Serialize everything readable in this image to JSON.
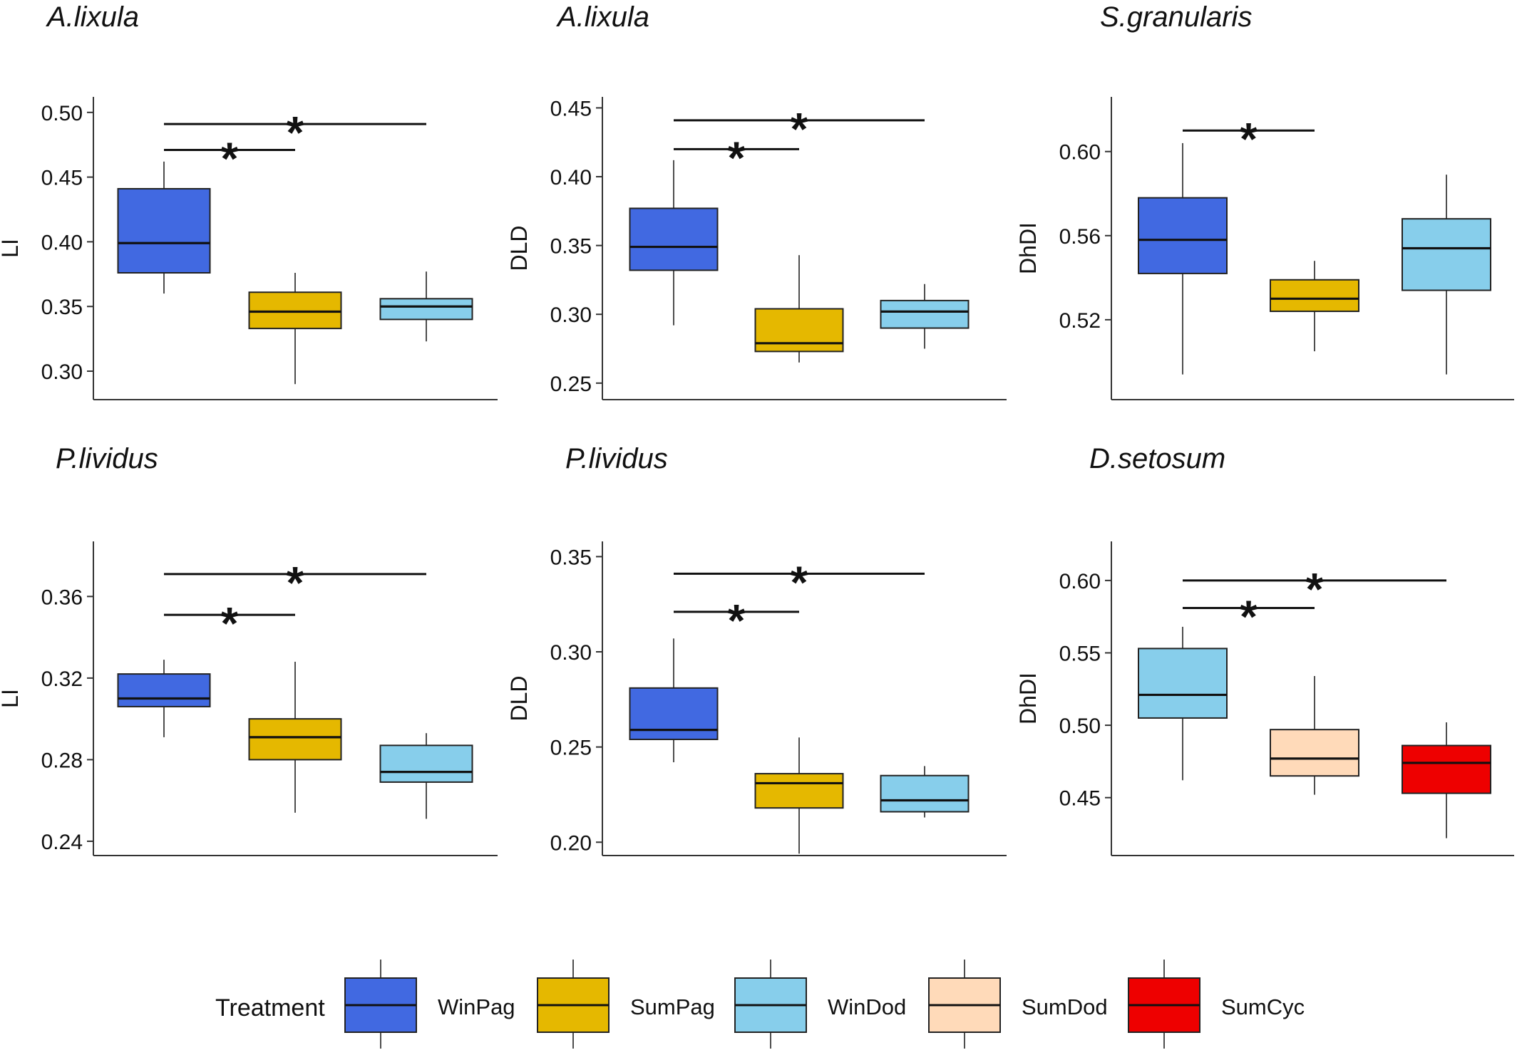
{
  "treatments": [
    {
      "name": "WinPag",
      "color": "#4169E1"
    },
    {
      "name": "SumPag",
      "color": "#E5B800"
    },
    {
      "name": "WinDod",
      "color": "#87CEEB"
    },
    {
      "name": "SumDod",
      "color": "#FFDAB9"
    },
    {
      "name": "SumCyc",
      "color": "#EE0000"
    }
  ],
  "legend": {
    "title": "Treatment"
  },
  "significance_marker": "*",
  "chart_data": [
    {
      "type": "boxplot",
      "title": "A.lixula",
      "ylabel": "LI",
      "ylim": [
        0.278,
        0.512
      ],
      "yticks": [
        0.3,
        0.35,
        0.4,
        0.45,
        0.5
      ],
      "tick_labels": [
        "0.30",
        "0.35",
        "0.40",
        "0.45",
        "0.50"
      ],
      "boxes": [
        {
          "treatment": "WinPag",
          "min": 0.36,
          "q1": 0.376,
          "median": 0.399,
          "q3": 0.441,
          "max": 0.462
        },
        {
          "treatment": "SumPag",
          "min": 0.29,
          "q1": 0.333,
          "median": 0.346,
          "q3": 0.361,
          "max": 0.376
        },
        {
          "treatment": "WinDod",
          "min": 0.323,
          "q1": 0.34,
          "median": 0.35,
          "q3": 0.356,
          "max": 0.377
        }
      ],
      "significance": [
        {
          "from": 0,
          "to": 1,
          "y": 0.471,
          "label": "*"
        },
        {
          "from": 0,
          "to": 2,
          "y": 0.491,
          "label": "*"
        }
      ]
    },
    {
      "type": "boxplot",
      "title": "A.lixula",
      "ylabel": "DLD",
      "ylim": [
        0.238,
        0.458
      ],
      "yticks": [
        0.25,
        0.3,
        0.35,
        0.4,
        0.45
      ],
      "tick_labels": [
        "0.25",
        "0.30",
        "0.35",
        "0.40",
        "0.45"
      ],
      "boxes": [
        {
          "treatment": "WinPag",
          "min": 0.292,
          "q1": 0.332,
          "median": 0.349,
          "q3": 0.377,
          "max": 0.412
        },
        {
          "treatment": "SumPag",
          "min": 0.265,
          "q1": 0.273,
          "median": 0.279,
          "q3": 0.304,
          "max": 0.343
        },
        {
          "treatment": "WinDod",
          "min": 0.275,
          "q1": 0.29,
          "median": 0.302,
          "q3": 0.31,
          "max": 0.322
        }
      ],
      "significance": [
        {
          "from": 0,
          "to": 1,
          "y": 0.42,
          "label": "*"
        },
        {
          "from": 0,
          "to": 2,
          "y": 0.441,
          "label": "*"
        }
      ]
    },
    {
      "type": "boxplot",
      "title": "S.granularis",
      "ylabel": "DhDI",
      "ylim": [
        0.482,
        0.626
      ],
      "yticks": [
        0.52,
        0.56,
        0.6
      ],
      "tick_labels": [
        "0.52",
        "0.56",
        "0.60"
      ],
      "boxes": [
        {
          "treatment": "WinPag",
          "min": 0.494,
          "q1": 0.542,
          "median": 0.558,
          "q3": 0.578,
          "max": 0.604
        },
        {
          "treatment": "SumPag",
          "min": 0.505,
          "q1": 0.524,
          "median": 0.53,
          "q3": 0.539,
          "max": 0.548
        },
        {
          "treatment": "WinDod",
          "min": 0.494,
          "q1": 0.534,
          "median": 0.554,
          "q3": 0.568,
          "max": 0.589
        }
      ],
      "significance": [
        {
          "from": 0,
          "to": 1,
          "y": 0.61,
          "label": "*"
        }
      ]
    },
    {
      "type": "boxplot",
      "title": "P.lividus",
      "ylabel": "LI",
      "ylim": [
        0.233,
        0.387
      ],
      "yticks": [
        0.24,
        0.28,
        0.32,
        0.36
      ],
      "tick_labels": [
        "0.24",
        "0.28",
        "0.32",
        "0.36"
      ],
      "boxes": [
        {
          "treatment": "WinPag",
          "min": 0.291,
          "q1": 0.306,
          "median": 0.31,
          "q3": 0.322,
          "max": 0.329
        },
        {
          "treatment": "SumPag",
          "min": 0.254,
          "q1": 0.28,
          "median": 0.291,
          "q3": 0.3,
          "max": 0.328
        },
        {
          "treatment": "WinDod",
          "min": 0.251,
          "q1": 0.269,
          "median": 0.274,
          "q3": 0.287,
          "max": 0.293
        }
      ],
      "significance": [
        {
          "from": 0,
          "to": 1,
          "y": 0.351,
          "label": "*"
        },
        {
          "from": 0,
          "to": 2,
          "y": 0.371,
          "label": "*"
        }
      ]
    },
    {
      "type": "boxplot",
      "title": "P.lividus",
      "ylabel": "DLD",
      "ylim": [
        0.193,
        0.358
      ],
      "yticks": [
        0.2,
        0.25,
        0.3,
        0.35
      ],
      "tick_labels": [
        "0.20",
        "0.25",
        "0.30",
        "0.35"
      ],
      "boxes": [
        {
          "treatment": "WinPag",
          "min": 0.242,
          "q1": 0.254,
          "median": 0.259,
          "q3": 0.281,
          "max": 0.307
        },
        {
          "treatment": "SumPag",
          "min": 0.194,
          "q1": 0.218,
          "median": 0.231,
          "q3": 0.236,
          "max": 0.255
        },
        {
          "treatment": "WinDod",
          "min": 0.213,
          "q1": 0.216,
          "median": 0.222,
          "q3": 0.235,
          "max": 0.24
        }
      ],
      "significance": [
        {
          "from": 0,
          "to": 1,
          "y": 0.321,
          "label": "*"
        },
        {
          "from": 0,
          "to": 2,
          "y": 0.341,
          "label": "*"
        }
      ]
    },
    {
      "type": "boxplot",
      "title": "D.setosum",
      "ylabel": "DhDI",
      "ylim": [
        0.41,
        0.627
      ],
      "yticks": [
        0.45,
        0.5,
        0.55,
        0.6
      ],
      "tick_labels": [
        "0.45",
        "0.50",
        "0.55",
        "0.60"
      ],
      "boxes": [
        {
          "treatment": "WinDod",
          "min": 0.462,
          "q1": 0.505,
          "median": 0.521,
          "q3": 0.553,
          "max": 0.568
        },
        {
          "treatment": "SumDod",
          "min": 0.452,
          "q1": 0.465,
          "median": 0.477,
          "q3": 0.497,
          "max": 0.534
        },
        {
          "treatment": "SumCyc",
          "min": 0.422,
          "q1": 0.453,
          "median": 0.474,
          "q3": 0.486,
          "max": 0.502
        }
      ],
      "significance": [
        {
          "from": 0,
          "to": 1,
          "y": 0.581,
          "label": "*"
        },
        {
          "from": 0,
          "to": 2,
          "y": 0.6,
          "label": "*"
        }
      ]
    }
  ]
}
